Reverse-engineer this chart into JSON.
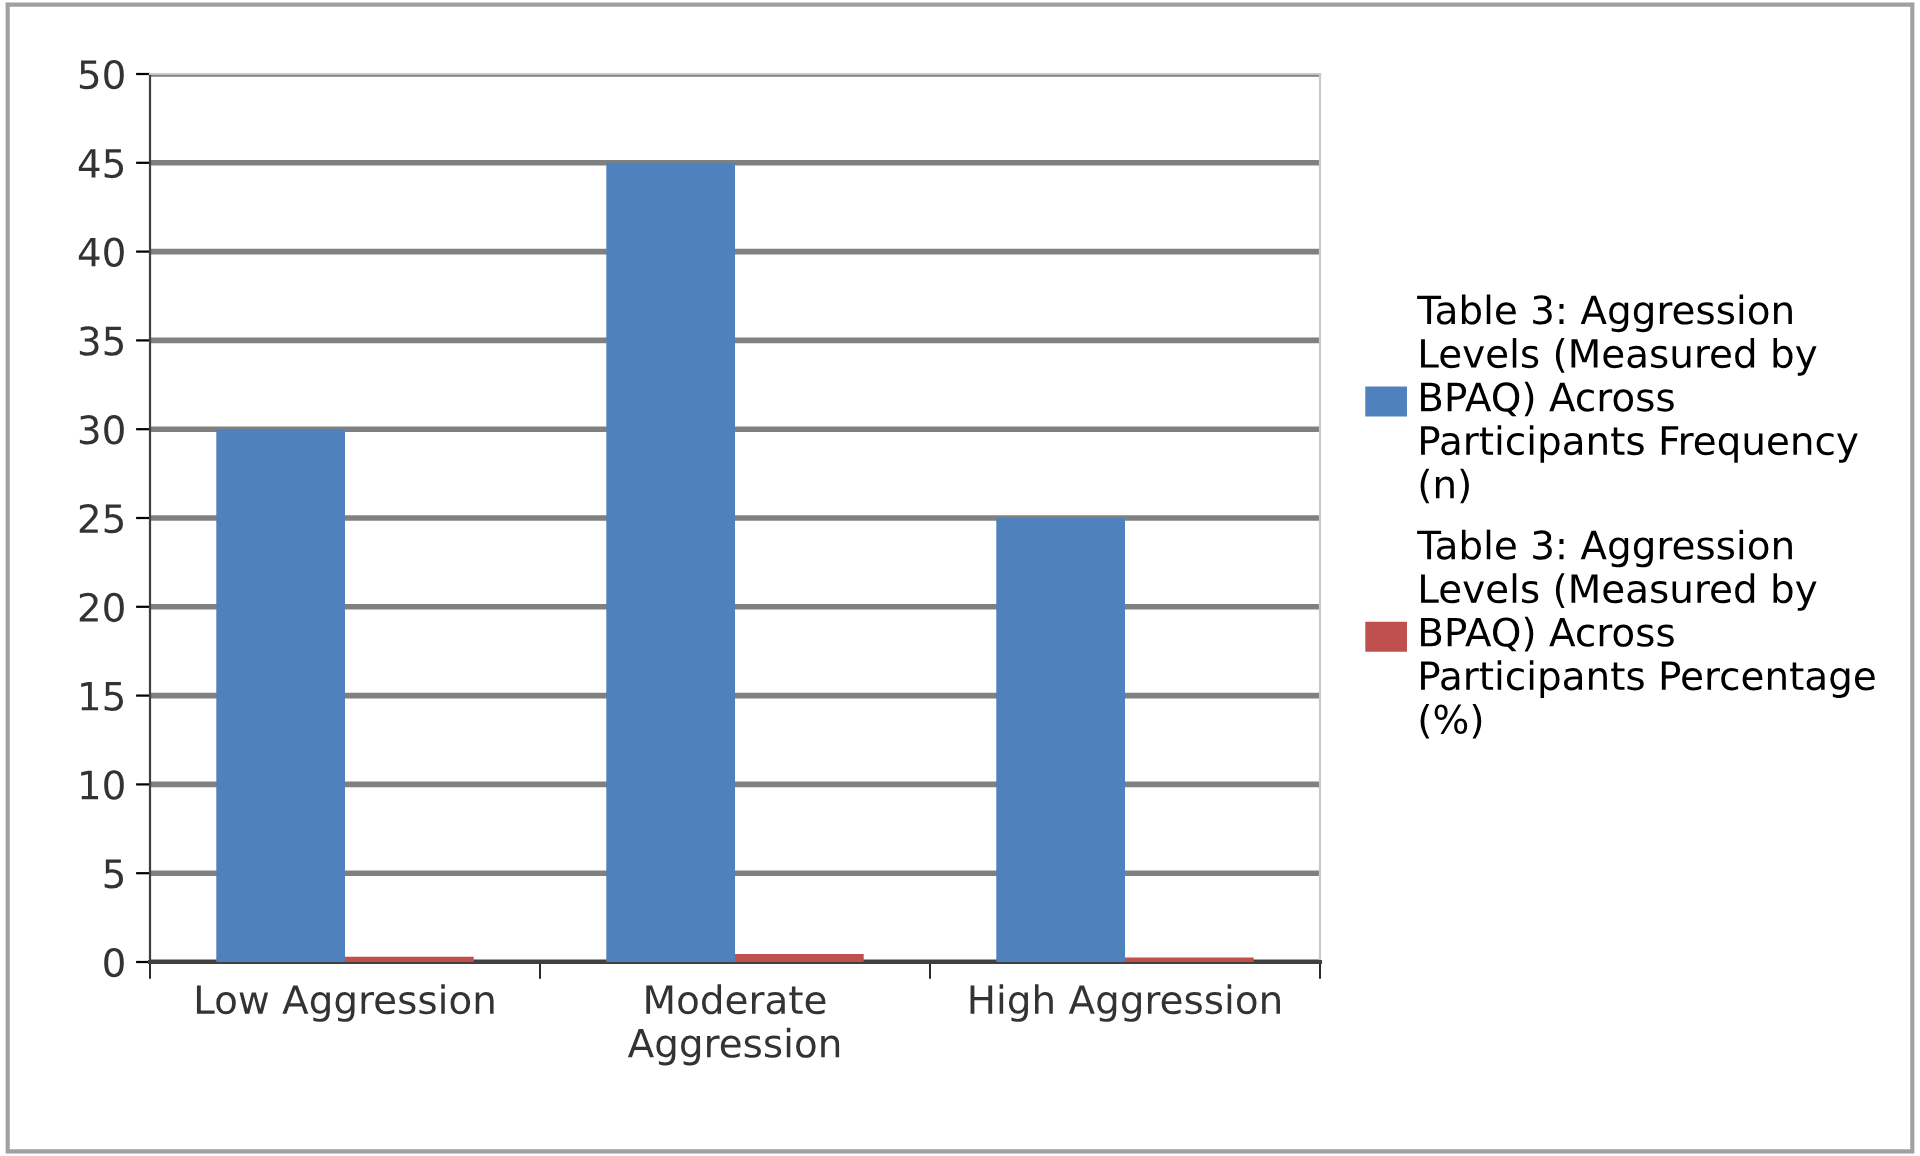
{
  "chart_data": {
    "type": "bar",
    "categories": [
      "Low Aggression",
      "Moderate\nAggression",
      "High Aggression"
    ],
    "series": [
      {
        "name": "Table 3: Aggression Levels (Measured by BPAQ) Across Participants Frequency (n)",
        "color": "#4f81bd",
        "values": [
          30,
          45,
          25
        ]
      },
      {
        "name": "Table 3: Aggression Levels (Measured by BPAQ) Across Participants Percentage (%)",
        "color": "#c0504d",
        "values": [
          0.3,
          0.45,
          0.25
        ]
      }
    ],
    "ylim": [
      0,
      50
    ],
    "yticks": [
      0,
      5,
      10,
      15,
      20,
      25,
      30,
      35,
      40,
      45,
      50
    ],
    "grid": "y",
    "legend": "right"
  }
}
